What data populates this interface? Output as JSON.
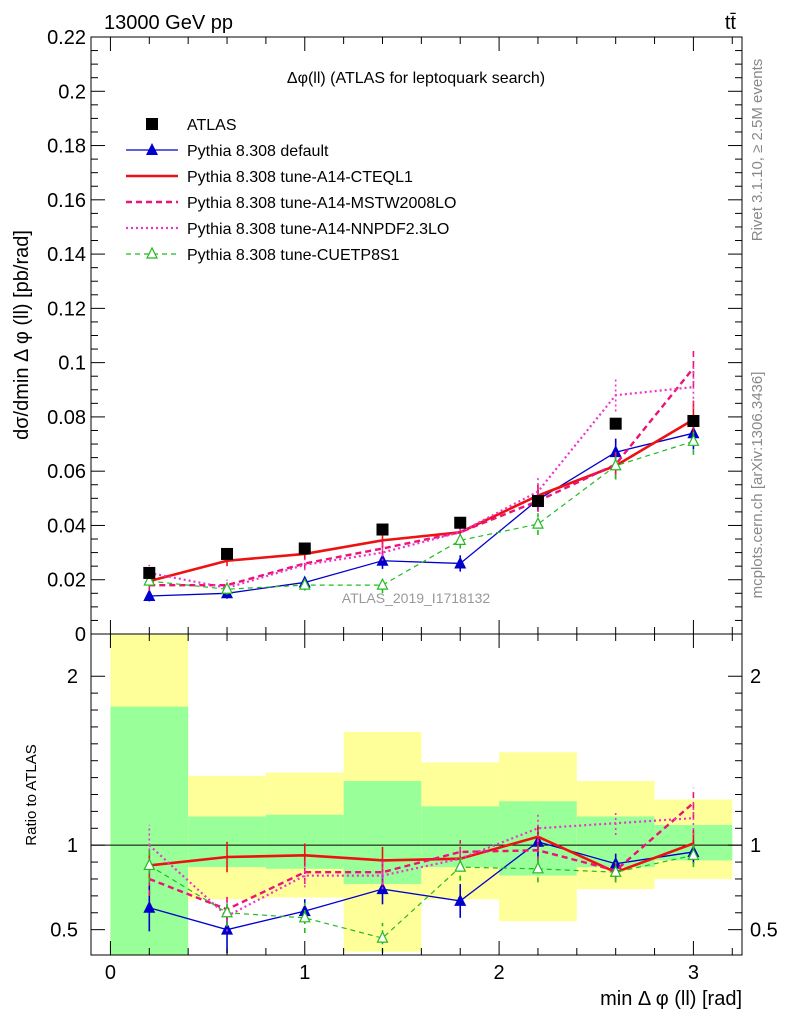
{
  "header": {
    "energy_label": "13000 GeV pp",
    "process_label": "tt̄"
  },
  "side_labels": {
    "rivet": "Rivet 3.1.10, ≥ 2.5M events",
    "mcplots": "mcplots.cern.ch [arXiv:1306.3436]"
  },
  "watermark": "ATLAS_2019_I1718132",
  "chart_data": [
    {
      "type": "line",
      "title": "Δφ(ll) (ATLAS for leptoquark search)",
      "ylabel": "dσ/dmin Δ φ (ll) [pb/rad]",
      "ylim": [
        0,
        0.22
      ],
      "y_ticks": [
        0,
        0.02,
        0.04,
        0.06,
        0.08,
        0.1,
        0.12,
        0.14,
        0.16,
        0.18,
        0.2,
        0.22
      ],
      "y_tick_labels": [
        "0",
        "0.02",
        "0.04",
        "0.06",
        "0.08",
        "0.1",
        "0.12",
        "0.14",
        "0.16",
        "0.18",
        "0.2",
        "0.22"
      ],
      "xlim": [
        -0.1,
        3.25
      ],
      "x": [
        0.2,
        0.6,
        1.0,
        1.4,
        1.8,
        2.2,
        2.6,
        3.0
      ],
      "legend_position": "top-left",
      "grid": false,
      "series": [
        {
          "name": "ATLAS",
          "style": "data",
          "marker": "square",
          "color": "#000000",
          "values": [
            0.0225,
            0.0295,
            0.0315,
            0.0385,
            0.041,
            0.049,
            0.0775,
            0.0785
          ],
          "errors": [
            0.001,
            0.001,
            0.001,
            0.001,
            0.001,
            0.0015,
            0.002,
            0.002
          ]
        },
        {
          "name": "Pythia 8.308 default",
          "style": "solid-thin",
          "marker": "triangle",
          "color": "#0000cc",
          "values": [
            0.014,
            0.015,
            0.019,
            0.027,
            0.026,
            0.0495,
            0.067,
            0.074
          ],
          "errors": [
            0.002,
            0.002,
            0.002,
            0.003,
            0.003,
            0.004,
            0.005,
            0.006
          ]
        },
        {
          "name": "Pythia 8.308 tune-A14-CTEQL1",
          "style": "solid-thick",
          "marker": "none",
          "color": "#ee1111",
          "values": [
            0.0195,
            0.027,
            0.0295,
            0.0345,
            0.0375,
            0.051,
            0.062,
            0.079
          ],
          "errors": [
            0.002,
            0.002,
            0.002,
            0.003,
            0.003,
            0.004,
            0.005,
            0.007
          ]
        },
        {
          "name": "Pythia 8.308 tune-A14-MSTW2008LO",
          "style": "dashed",
          "marker": "none",
          "color": "#ee1177",
          "values": [
            0.018,
            0.018,
            0.026,
            0.0315,
            0.0375,
            0.049,
            0.0625,
            0.098
          ],
          "errors": [
            0.002,
            0.002,
            0.002,
            0.003,
            0.003,
            0.004,
            0.005,
            0.007
          ]
        },
        {
          "name": "Pythia 8.308 tune-A14-NNPDF2.3LO",
          "style": "dotted",
          "marker": "none",
          "color": "#ee33cc",
          "values": [
            0.0225,
            0.017,
            0.0255,
            0.03,
            0.0375,
            0.0525,
            0.088,
            0.091
          ],
          "errors": [
            0.003,
            0.002,
            0.002,
            0.003,
            0.003,
            0.005,
            0.006,
            0.008
          ]
        },
        {
          "name": "Pythia 8.308 tune-CUETP8S1",
          "style": "dashed-thin",
          "marker": "open-triangle",
          "color": "#22bb22",
          "values": [
            0.0195,
            0.0165,
            0.018,
            0.018,
            0.0345,
            0.0405,
            0.062,
            0.071
          ],
          "errors": [
            0.002,
            0.002,
            0.002,
            0.003,
            0.003,
            0.004,
            0.005,
            0.005
          ]
        }
      ]
    },
    {
      "type": "line",
      "ylabel": "Ratio to ATLAS",
      "xlabel": "min Δ φ (ll) [rad]",
      "ylim": [
        0.35,
        2.25
      ],
      "y_ticks": [
        0.5,
        1,
        2
      ],
      "y_tick_labels": [
        "0.5",
        "1",
        "2"
      ],
      "xlim": [
        -0.1,
        3.25
      ],
      "x_ticks": [
        0,
        1,
        2,
        3
      ],
      "x_tick_labels": [
        "0",
        "1",
        "2",
        "3"
      ],
      "bin_edges": [
        0,
        0.4,
        0.8,
        1.2,
        1.6,
        2.0,
        2.4,
        2.8,
        3.2
      ],
      "uncertainty_bands": {
        "green_color": "#99ff99",
        "yellow_color": "#ffff99",
        "green_low": [
          0.35,
          0.87,
          0.86,
          0.77,
          0.87,
          0.82,
          0.87,
          0.91
        ],
        "green_high": [
          1.82,
          1.17,
          1.18,
          1.38,
          1.23,
          1.26,
          1.17,
          1.12
        ],
        "yellow_low": [
          0.35,
          0.68,
          0.69,
          0.37,
          0.68,
          0.55,
          0.74,
          0.8
        ],
        "yellow_high": [
          2.25,
          1.41,
          1.43,
          1.67,
          1.49,
          1.55,
          1.38,
          1.27
        ]
      },
      "reference_line": 1,
      "x": [
        0.2,
        0.6,
        1.0,
        1.4,
        1.8,
        2.2,
        2.6,
        3.0
      ],
      "series": [
        {
          "name": "Pythia 8.308 default",
          "values": [
            0.63,
            0.5,
            0.61,
            0.74,
            0.67,
            1.02,
            0.89,
            0.96
          ],
          "errors": [
            0.14,
            0.14,
            0.07,
            0.09,
            0.1,
            0.09,
            0.06,
            0.07
          ]
        },
        {
          "name": "Pythia 8.308 tune-A14-CTEQL1",
          "values": [
            0.88,
            0.93,
            0.94,
            0.91,
            0.92,
            1.05,
            0.84,
            1.01
          ],
          "errors": [
            0.1,
            0.09,
            0.07,
            0.08,
            0.07,
            0.07,
            0.06,
            0.08
          ]
        },
        {
          "name": "Pythia 8.308 tune-A14-MSTW2008LO",
          "values": [
            0.8,
            0.62,
            0.84,
            0.84,
            0.96,
            0.97,
            0.85,
            1.25
          ],
          "errors": [
            0.1,
            0.08,
            0.07,
            0.08,
            0.07,
            0.07,
            0.06,
            0.09
          ]
        },
        {
          "name": "Pythia 8.308 tune-A14-NNPDF2.3LO",
          "values": [
            1.0,
            0.58,
            0.82,
            0.82,
            0.92,
            1.1,
            1.13,
            1.16
          ],
          "errors": [
            0.12,
            0.09,
            0.07,
            0.08,
            0.07,
            0.08,
            0.07,
            0.1
          ]
        },
        {
          "name": "Pythia 8.308 tune-CUETP8S1",
          "values": [
            0.88,
            0.6,
            0.57,
            0.45,
            0.87,
            0.86,
            0.84,
            0.94
          ],
          "errors": [
            0.1,
            0.08,
            0.09,
            0.09,
            0.08,
            0.08,
            0.06,
            0.07
          ]
        }
      ]
    }
  ]
}
